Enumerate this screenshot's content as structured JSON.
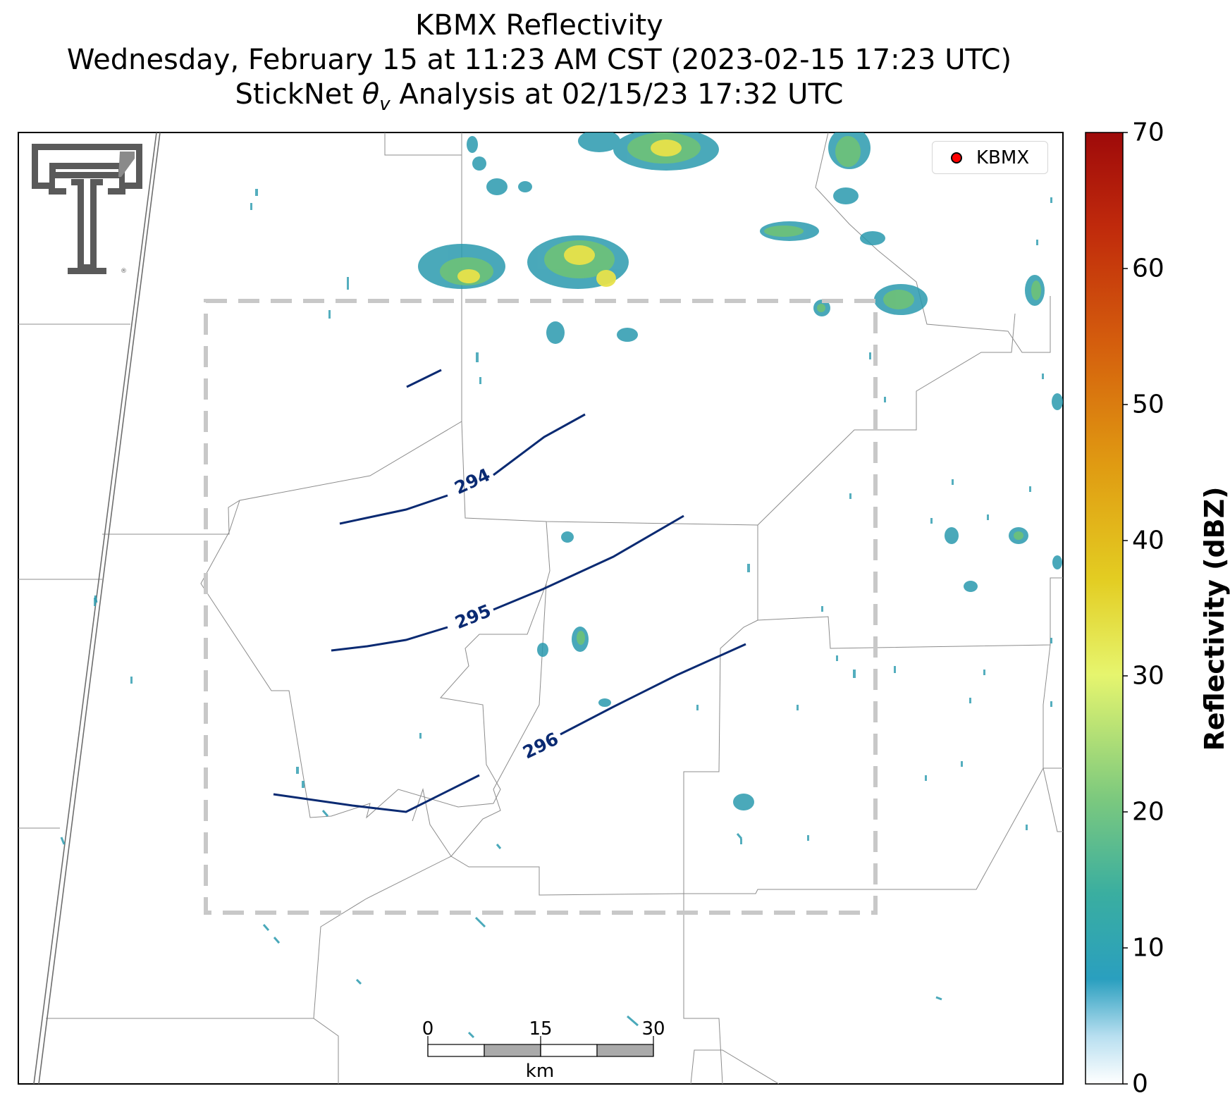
{
  "title": {
    "line1": "KBMX Reflectivity",
    "line2": "Wednesday, February 15 at 11:23 AM CST (2023-02-15 17:23 UTC)",
    "line3_prefix": "StickNet ",
    "line3_symbol": "θ",
    "line3_subscript": "v",
    "line3_suffix": " Analysis at 02/15/23 17:32 UTC"
  },
  "legend": {
    "label": "KBMX",
    "marker_color": "#ff0000"
  },
  "colorbar": {
    "title": "Reflectivity (dBZ)",
    "ticks": [
      "0",
      "10",
      "20",
      "30",
      "40",
      "50",
      "60",
      "70"
    ],
    "range": [
      0,
      70
    ]
  },
  "contours": {
    "color": "#0a2a72",
    "labels": [
      "294",
      "295",
      "296"
    ]
  },
  "scale_bar": {
    "ticks": [
      "0",
      "15",
      "30"
    ],
    "unit": "km"
  },
  "analysis_box": {
    "style": "dashed",
    "color": "#c8c8c8"
  },
  "logo": {
    "name": "texas-tech-double-t-logo"
  },
  "colors": {
    "county_lines": "#8c8c8c",
    "frame": "#000000",
    "echo_light": "#2a9aae",
    "echo_mid": "#6cc07a",
    "echo_high": "#e8e24a"
  }
}
